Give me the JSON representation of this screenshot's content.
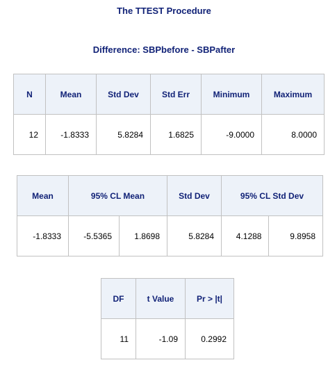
{
  "title": "The TTEST Procedure",
  "subtitle": "Difference: SBPbefore - SBPafter",
  "summary_table": {
    "headers": [
      "N",
      "Mean",
      "Std Dev",
      "Std Err",
      "Minimum",
      "Maximum"
    ],
    "row": [
      "12",
      "-1.8333",
      "5.8284",
      "1.6825",
      "-9.0000",
      "8.0000"
    ]
  },
  "cl_table": {
    "headers": [
      "Mean",
      "95% CL Mean",
      "Std Dev",
      "95% CL Std Dev"
    ],
    "row": [
      "-1.8333",
      "-5.5365",
      "1.8698",
      "5.8284",
      "4.1288",
      "9.8958"
    ]
  },
  "ttest_table": {
    "headers": [
      "DF",
      "t Value",
      "Pr > |t|"
    ],
    "row": [
      "11",
      "-1.09",
      "0.2992"
    ]
  },
  "colors": {
    "header_bg": "#edf2f9",
    "header_text": "#112277",
    "border": "#c1c1c1"
  }
}
